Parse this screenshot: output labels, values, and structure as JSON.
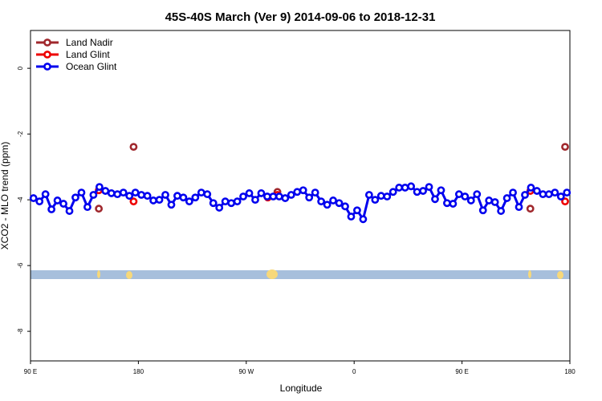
{
  "chart_data": {
    "type": "line",
    "title": "45S-40S March (Ver 9)   2014-09-06 to 2018-12-31",
    "x_label": "Longitude",
    "y_label": "XCO2 - MLO trend (ppm)",
    "xlim": [
      90,
      540
    ],
    "ylim": [
      -8.9,
      1.15
    ],
    "xticks": [
      {
        "value": 90,
        "label": "90 E"
      },
      180,
      {
        "value": 270,
        "label": "90 W"
      },
      {
        "value": 360,
        "label": "0"
      },
      {
        "value": 450,
        "label": "90 E"
      },
      {
        "value": 540,
        "label": "180"
      }
    ],
    "yticks": [
      0,
      -2,
      -4,
      -6,
      -8
    ],
    "legend": "upper left",
    "series": [
      {
        "name": "Land Nadir",
        "color": "#a0282d",
        "lines": false,
        "x": [
          147,
          176,
          296,
          507,
          536
        ],
        "values": [
          -4.27,
          -2.39,
          -3.76,
          -4.27,
          -2.39
        ]
      },
      {
        "name": "Land Glint",
        "color": "#ee0000",
        "lines": false,
        "x": [
          147,
          176,
          288,
          296,
          507,
          536
        ],
        "values": [
          -3.71,
          -4.05,
          -3.93,
          -3.85,
          -3.73,
          -4.05
        ]
      },
      {
        "name": "Ocean Glint",
        "color": "#0000ee",
        "lines": true,
        "x": [
          92.5,
          97.5,
          102.5,
          107.5,
          112.5,
          117.5,
          122.5,
          127.5,
          132.5,
          137.5,
          142.5,
          147.5,
          152.5,
          157.5,
          162.5,
          167.5,
          172.5,
          177.5,
          182.5,
          187.5,
          192.5,
          197.5,
          202.5,
          207.5,
          212.5,
          217.5,
          222.5,
          227.5,
          232.5,
          237.5,
          242.5,
          247.5,
          252.5,
          257.5,
          262.5,
          267.5,
          272.5,
          277.5,
          282.5,
          287.5,
          292.5,
          297.5,
          302.5,
          307.5,
          312.5,
          317.5,
          322.5,
          327.5,
          332.5,
          337.5,
          342.5,
          347.5,
          352.5,
          357.5,
          362.5,
          367.5,
          372.5,
          377.5,
          382.5,
          387.5,
          392.5,
          397.5,
          402.5,
          407.5,
          412.5,
          417.5,
          422.5,
          427.5,
          432.5,
          437.5,
          442.5,
          447.5,
          452.5,
          457.5,
          462.5,
          467.5,
          472.5,
          477.5,
          482.5,
          487.5,
          492.5,
          497.5,
          502.5,
          507.5,
          512.5,
          517.5,
          522.5,
          527.5,
          532.5,
          537.5
        ],
        "values": [
          -3.95,
          -4.05,
          -3.83,
          -4.29,
          -4.02,
          -4.12,
          -4.34,
          -3.93,
          -3.78,
          -4.22,
          -3.85,
          -3.61,
          -3.73,
          -3.8,
          -3.83,
          -3.78,
          -3.88,
          -3.78,
          -3.85,
          -3.88,
          -4.02,
          -4.0,
          -3.85,
          -4.15,
          -3.88,
          -3.93,
          -4.05,
          -3.93,
          -3.78,
          -3.83,
          -4.1,
          -4.24,
          -4.05,
          -4.1,
          -4.05,
          -3.9,
          -3.8,
          -4.0,
          -3.8,
          -3.9,
          -3.9,
          -3.9,
          -3.95,
          -3.85,
          -3.76,
          -3.71,
          -3.93,
          -3.78,
          -4.05,
          -4.15,
          -4.02,
          -4.1,
          -4.2,
          -4.51,
          -4.32,
          -4.59,
          -3.85,
          -4.0,
          -3.88,
          -3.9,
          -3.76,
          -3.63,
          -3.63,
          -3.59,
          -3.76,
          -3.73,
          -3.61,
          -3.98,
          -3.71,
          -4.1,
          -4.12,
          -3.83,
          -3.9,
          -4.02,
          -3.83,
          -4.32,
          -4.02,
          -4.07,
          -4.34,
          -3.95,
          -3.78,
          -4.22,
          -3.85,
          -3.63,
          -3.73,
          -3.83,
          -3.83,
          -3.78,
          -3.9,
          -3.78
        ]
      }
    ]
  }
}
